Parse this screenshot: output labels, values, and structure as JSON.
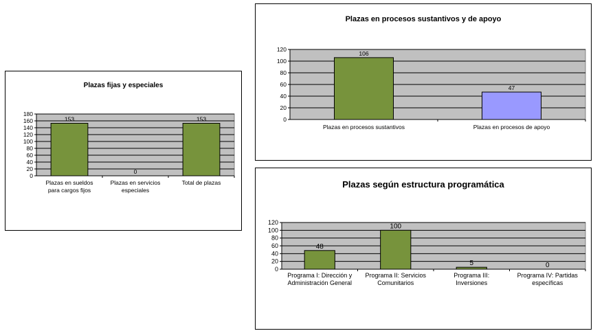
{
  "chart_data": [
    {
      "type": "bar",
      "title": "Plazas fijas y especiales",
      "categories": [
        [
          "Plazas en sueldos",
          "para cargos fijos"
        ],
        [
          "Plazas en servicios",
          "especiales"
        ],
        [
          "Total de plazas"
        ]
      ],
      "values": [
        153,
        0,
        153
      ],
      "bar_colors": [
        "#77933c",
        "#77933c",
        "#77933c"
      ],
      "y_ticks": [
        0,
        20,
        40,
        60,
        80,
        100,
        120,
        140,
        160,
        180
      ],
      "ylim": [
        0,
        180
      ],
      "grid": true,
      "plot_background": "#c0c0c0",
      "legend": "none"
    },
    {
      "type": "bar",
      "title": "Plazas en procesos sustantivos  y de apoyo",
      "categories": [
        [
          "Plazas en procesos sustantivos"
        ],
        [
          "Plazas en procesos de apoyo"
        ]
      ],
      "values": [
        106,
        47
      ],
      "bar_colors": [
        "#77933c",
        "#9999ff"
      ],
      "y_ticks": [
        0,
        20,
        40,
        60,
        80,
        100,
        120
      ],
      "ylim": [
        0,
        120
      ],
      "grid": true,
      "plot_background": "#c0c0c0",
      "legend": "none"
    },
    {
      "type": "bar",
      "title": "Plazas según estructura programática",
      "categories": [
        [
          "Programa I: Dirección y",
          "Administración General"
        ],
        [
          "Programa II: Servicios",
          "Comunitarios"
        ],
        [
          "Programa III:",
          "Inversiones"
        ],
        [
          "Programa IV: Partidas",
          "específicas"
        ]
      ],
      "values": [
        48,
        100,
        5,
        0
      ],
      "bar_colors": [
        "#77933c",
        "#77933c",
        "#77933c",
        "#77933c"
      ],
      "y_ticks": [
        0,
        20,
        40,
        60,
        80,
        100,
        120
      ],
      "ylim": [
        0,
        120
      ],
      "grid": true,
      "plot_background": "#c0c0c0",
      "legend": "none"
    }
  ]
}
